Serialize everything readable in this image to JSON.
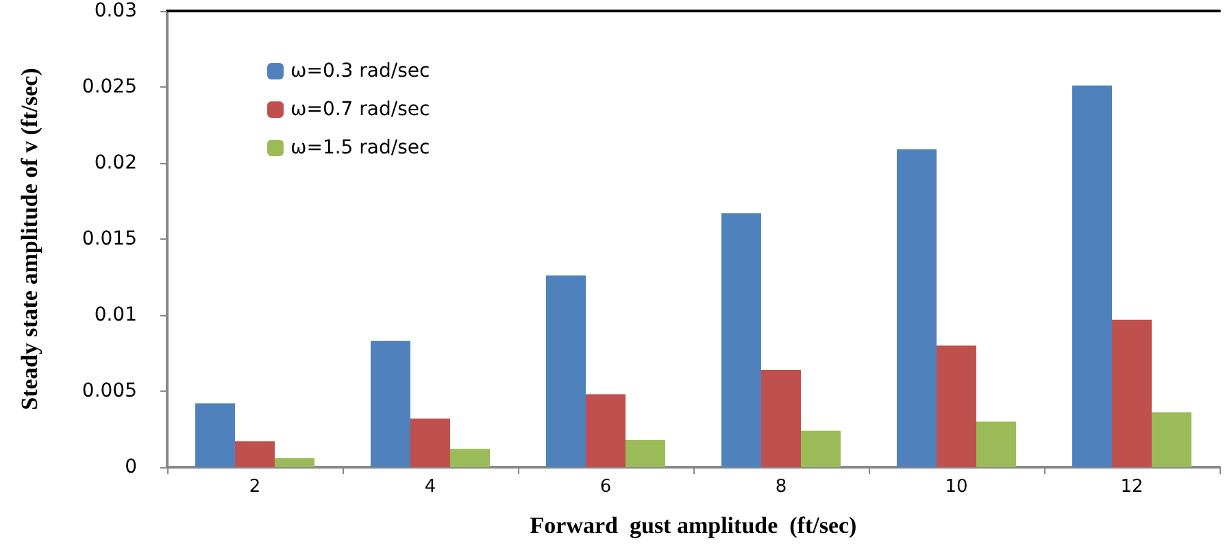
{
  "chart_data": {
    "type": "bar",
    "xlabel": "Forward  gust amplitude  (ft/sec)",
    "ylabel": "Steady state amplitude of v (ft/sec)",
    "categories": [
      "2",
      "4",
      "6",
      "8",
      "10",
      "12"
    ],
    "series": [
      {
        "name": "ω=0.3 rad/sec",
        "color": "#4f81bd",
        "values": [
          0.0042,
          0.0083,
          0.0126,
          0.0167,
          0.0209,
          0.0251
        ]
      },
      {
        "name": "ω=0.7 rad/sec",
        "color": "#c0504d",
        "values": [
          0.0017,
          0.0032,
          0.0048,
          0.0064,
          0.008,
          0.0097
        ]
      },
      {
        "name": "ω=1.5 rad/sec",
        "color": "#9bbb59",
        "values": [
          0.0006,
          0.0012,
          0.0018,
          0.0024,
          0.003,
          0.0036
        ]
      }
    ],
    "ylim": [
      0,
      0.03
    ],
    "yticks": [
      0,
      0.005,
      0.01,
      0.015,
      0.02,
      0.025,
      0.03
    ],
    "grid": false,
    "legend": "top left"
  }
}
